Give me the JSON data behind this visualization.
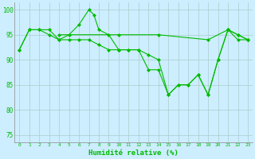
{
  "xlabel": "Humidité relative (%)",
  "background_color": "#cceeff",
  "grid_color": "#aacccc",
  "line_color": "#00bb00",
  "xlim": [
    -0.5,
    23.5
  ],
  "ylim": [
    73.5,
    101.5
  ],
  "yticks": [
    75,
    80,
    85,
    90,
    95,
    100
  ],
  "xtick_labels": [
    "0",
    "1",
    "2",
    "3",
    "4",
    "5",
    "6",
    "7",
    "8",
    "9",
    "10",
    "11",
    "12",
    "13",
    "14",
    "15",
    "16",
    "17",
    "18",
    "19",
    "20",
    "21",
    "22",
    "23"
  ],
  "line1_x": [
    0,
    1,
    2,
    3,
    4,
    5,
    6,
    7,
    7.5,
    8,
    9,
    10,
    11,
    12,
    13,
    14,
    15,
    16,
    17,
    18,
    19,
    20,
    21,
    22,
    23
  ],
  "line1_y": [
    92,
    96,
    96,
    96,
    94,
    95,
    97,
    100,
    99,
    96,
    95,
    92,
    92,
    92,
    88,
    88,
    83,
    85,
    85,
    87,
    83,
    90,
    96,
    95,
    94
  ],
  "line2_x": [
    0,
    1,
    2,
    3,
    4,
    5,
    6,
    7,
    8,
    9,
    10,
    11,
    12,
    13,
    14,
    15,
    16,
    17,
    18,
    19,
    20,
    21,
    22,
    23
  ],
  "line2_y": [
    92,
    96,
    96,
    95,
    94,
    94,
    94,
    94,
    93,
    92,
    92,
    92,
    92,
    91,
    90,
    83,
    85,
    85,
    87,
    83,
    90,
    96,
    94,
    94
  ],
  "line3_x": [
    4,
    10,
    14,
    19,
    21,
    22,
    23
  ],
  "line3_y": [
    95,
    95,
    95,
    94,
    96,
    95,
    94
  ]
}
